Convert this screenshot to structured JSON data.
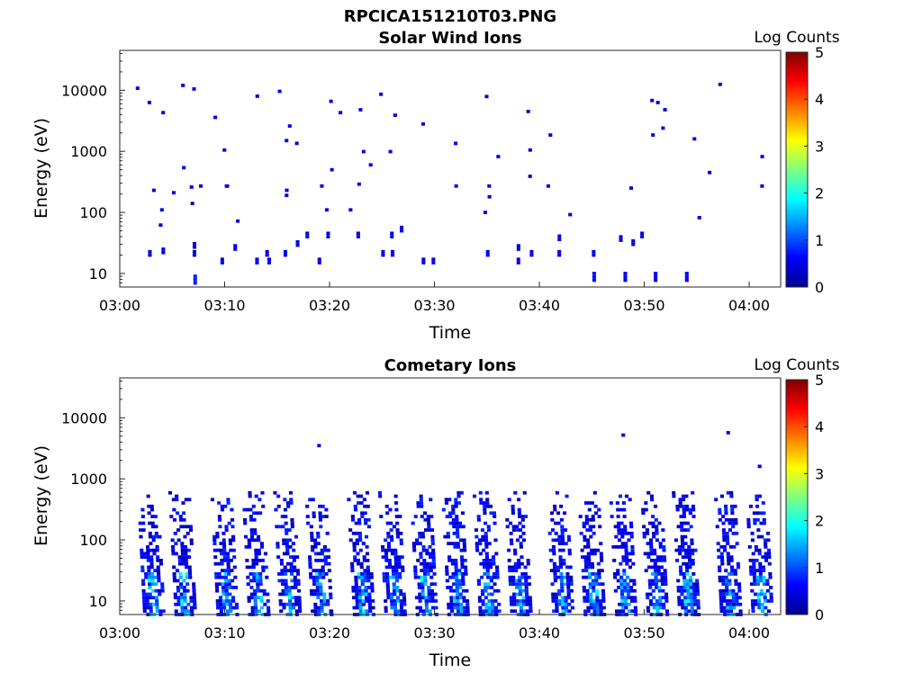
{
  "figure": {
    "title": "RPCICA151210T03.PNG"
  },
  "chart_data": [
    {
      "type": "heatmap",
      "title": "Solar Wind Ions",
      "xlabel": "Time",
      "ylabel": "Energy (eV)",
      "colorbar_label": "Log Counts",
      "colorbar_ticks": [
        0,
        1,
        2,
        3,
        4,
        5
      ],
      "clim": [
        0,
        5
      ],
      "xlim": [
        "03:00",
        "04:03"
      ],
      "x_ticks": [
        "03:00",
        "03:10",
        "03:20",
        "03:30",
        "03:40",
        "03:50",
        "04:00"
      ],
      "y_scale": "log",
      "ylim": [
        6,
        45000
      ],
      "y_ticks": [
        10,
        100,
        1000,
        10000
      ],
      "y_tick_labels": [
        "10",
        "100",
        "1000",
        "10000"
      ],
      "colormap": "jet",
      "points": [
        [
          "03:02",
          10800,
          0.5
        ],
        [
          "03:03",
          230,
          0.5
        ],
        [
          "03:03",
          20,
          0.5
        ],
        [
          "03:03",
          6300,
          0.5
        ],
        [
          "03:04",
          4300,
          0.5
        ],
        [
          "03:04",
          110,
          0.5
        ],
        [
          "03:04",
          62,
          0.5
        ],
        [
          "03:04",
          22,
          0.5
        ],
        [
          "03:05",
          210,
          0.5
        ],
        [
          "03:06",
          12000,
          0.5
        ],
        [
          "03:06",
          540,
          0.5
        ],
        [
          "03:07",
          10500,
          0.5
        ],
        [
          "03:07",
          9,
          0.8
        ],
        [
          "03:07",
          260,
          0.5
        ],
        [
          "03:07",
          140,
          0.5
        ],
        [
          "03:07",
          27,
          0.5
        ],
        [
          "03:07",
          20,
          0.5
        ],
        [
          "03:08",
          270,
          0.5
        ],
        [
          "03:09",
          3600,
          0.5
        ],
        [
          "03:10",
          1050,
          0.5
        ],
        [
          "03:10",
          270,
          0.5
        ],
        [
          "03:10",
          270,
          0.5
        ],
        [
          "03:10",
          15,
          0.5
        ],
        [
          "03:11",
          25,
          0.5
        ],
        [
          "03:11",
          72,
          0.5
        ],
        [
          "03:13",
          8000,
          0.5
        ],
        [
          "03:13",
          15,
          0.5
        ],
        [
          "03:14",
          20,
          0.5
        ],
        [
          "03:14",
          15,
          0.5
        ],
        [
          "03:15",
          9600,
          0.5
        ],
        [
          "03:16",
          230,
          0.5
        ],
        [
          "03:16",
          190,
          0.5
        ],
        [
          "03:16",
          2600,
          0.5
        ],
        [
          "03:16",
          1500,
          0.5
        ],
        [
          "03:16",
          20,
          0.5
        ],
        [
          "03:17",
          1350,
          0.5
        ],
        [
          "03:17",
          29,
          0.5
        ],
        [
          "03:18",
          40,
          0.5
        ],
        [
          "03:19",
          270,
          0.5
        ],
        [
          "03:19",
          15,
          0.5
        ],
        [
          "03:20",
          6600,
          0.5
        ],
        [
          "03:20",
          500,
          0.5
        ],
        [
          "03:20",
          110,
          0.5
        ],
        [
          "03:20",
          40,
          0.5
        ],
        [
          "03:21",
          4300,
          0.5
        ],
        [
          "03:22",
          110,
          0.5
        ],
        [
          "03:23",
          4800,
          0.5
        ],
        [
          "03:23",
          290,
          0.5
        ],
        [
          "03:23",
          990,
          0.5
        ],
        [
          "03:23",
          40,
          0.5
        ],
        [
          "03:24",
          600,
          0.5
        ],
        [
          "03:25",
          8600,
          0.5
        ],
        [
          "03:25",
          20,
          0.5
        ],
        [
          "03:26",
          3900,
          0.5
        ],
        [
          "03:26",
          20,
          0.6
        ],
        [
          "03:26",
          990,
          0.5
        ],
        [
          "03:26",
          40,
          0.5
        ],
        [
          "03:27",
          50,
          0.5
        ],
        [
          "03:29",
          2800,
          0.5
        ],
        [
          "03:29",
          15,
          0.5
        ],
        [
          "03:30",
          15,
          0.5
        ],
        [
          "03:32",
          1350,
          0.5
        ],
        [
          "03:32",
          270,
          0.5
        ],
        [
          "03:35",
          100,
          0.5
        ],
        [
          "03:35",
          180,
          0.5
        ],
        [
          "03:35",
          7900,
          0.5
        ],
        [
          "03:35",
          270,
          0.5
        ],
        [
          "03:35",
          20,
          0.6
        ],
        [
          "03:36",
          820,
          0.5
        ],
        [
          "03:38",
          25,
          0.5
        ],
        [
          "03:38",
          15,
          0.5
        ],
        [
          "03:39",
          390,
          0.5
        ],
        [
          "03:39",
          20,
          0.5
        ],
        [
          "03:39",
          4500,
          0.5
        ],
        [
          "03:39",
          1050,
          0.5
        ],
        [
          "03:41",
          270,
          0.5
        ],
        [
          "03:41",
          1850,
          0.5
        ],
        [
          "03:42",
          36,
          0.5
        ],
        [
          "03:42",
          20,
          0.5
        ],
        [
          "03:43",
          92,
          0.5
        ],
        [
          "03:45",
          20,
          0.6
        ],
        [
          "03:45",
          10,
          0.7
        ],
        [
          "03:48",
          35,
          0.5
        ],
        [
          "03:48",
          10,
          0.6
        ],
        [
          "03:49",
          250,
          0.5
        ],
        [
          "03:49",
          30,
          0.5
        ],
        [
          "03:50",
          40,
          0.5
        ],
        [
          "03:51",
          6800,
          0.5
        ],
        [
          "03:51",
          6300,
          0.5
        ],
        [
          "03:51",
          1850,
          0.5
        ],
        [
          "03:51",
          10,
          0.6
        ],
        [
          "03:52",
          2400,
          0.5
        ],
        [
          "03:52",
          4800,
          0.5
        ],
        [
          "03:54",
          10,
          0.6
        ],
        [
          "03:55",
          1600,
          0.5
        ],
        [
          "03:55",
          82,
          0.5
        ],
        [
          "03:56",
          450,
          0.5
        ],
        [
          "03:57",
          12500,
          0.5
        ],
        [
          "04:01",
          270,
          0.5
        ],
        [
          "04:01",
          820,
          0.5
        ]
      ]
    },
    {
      "type": "heatmap",
      "title": "Cometary Ions",
      "xlabel": "Time",
      "ylabel": "Energy (eV)",
      "colorbar_label": "Log Counts",
      "colorbar_ticks": [
        0,
        1,
        2,
        3,
        4,
        5
      ],
      "clim": [
        0,
        5
      ],
      "xlim": [
        "03:00",
        "04:03"
      ],
      "x_ticks": [
        "03:00",
        "03:10",
        "03:20",
        "03:30",
        "03:40",
        "03:50",
        "04:00"
      ],
      "y_scale": "log",
      "ylim": [
        6,
        45000
      ],
      "y_ticks": [
        10,
        100,
        1000,
        10000
      ],
      "y_tick_labels": [
        "10",
        "100",
        "1000",
        "10000"
      ],
      "colormap": "jet",
      "bursts": [
        "03:03",
        "03:06",
        "03:10",
        "03:13",
        "03:16",
        "03:19",
        "03:23",
        "03:26",
        "03:29",
        "03:32",
        "03:35",
        "03:38",
        "03:42",
        "03:45",
        "03:48",
        "03:51",
        "03:54",
        "03:58",
        "04:01"
      ],
      "burst_energy_range": [
        6,
        600
      ],
      "burst_peak_log_counts": 1.8,
      "isolated_points": [
        [
          "03:19",
          3500,
          0.5
        ],
        [
          "03:48",
          5200,
          0.5
        ],
        [
          "03:58",
          5700,
          0.5
        ],
        [
          "04:01",
          1600,
          0.5
        ]
      ]
    }
  ]
}
